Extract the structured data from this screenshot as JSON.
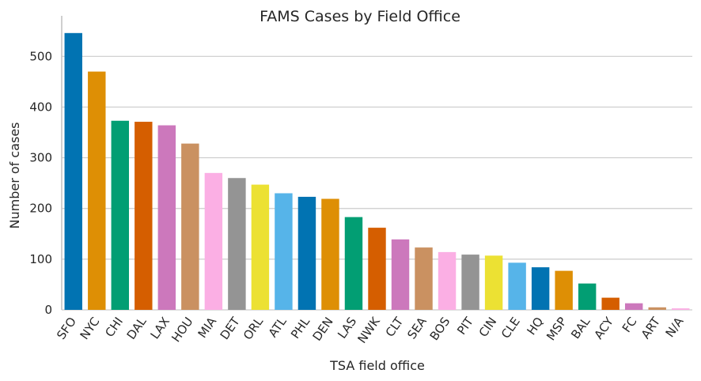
{
  "chart_data": {
    "type": "bar",
    "title": "FAMS Cases by Field Office",
    "xlabel": "TSA field office",
    "ylabel": "Number of cases",
    "ylim": [
      0,
      580
    ],
    "yticks": [
      0,
      100,
      200,
      300,
      400,
      500
    ],
    "grid": "horizontal",
    "categories": [
      "SFO",
      "NYC",
      "CHI",
      "DAL",
      "LAX",
      "HOU",
      "MIA",
      "DET",
      "ORL",
      "ATL",
      "PHL",
      "DEN",
      "LAS",
      "NWK",
      "CLT",
      "SEA",
      "BOS",
      "PIT",
      "CIN",
      "CLE",
      "HQ",
      "MSP",
      "BAL",
      "ACY",
      "FC",
      "ART",
      "N/A"
    ],
    "values": [
      546,
      470,
      373,
      371,
      364,
      328,
      270,
      260,
      247,
      230,
      223,
      219,
      183,
      162,
      139,
      123,
      114,
      109,
      107,
      93,
      84,
      77,
      52,
      24,
      13,
      5,
      3
    ],
    "colors": [
      "#0173b2",
      "#de8f05",
      "#029e73",
      "#d55e00",
      "#cc78bc",
      "#ca9161",
      "#fbafe4",
      "#949494",
      "#ece133",
      "#56b4e9"
    ]
  }
}
